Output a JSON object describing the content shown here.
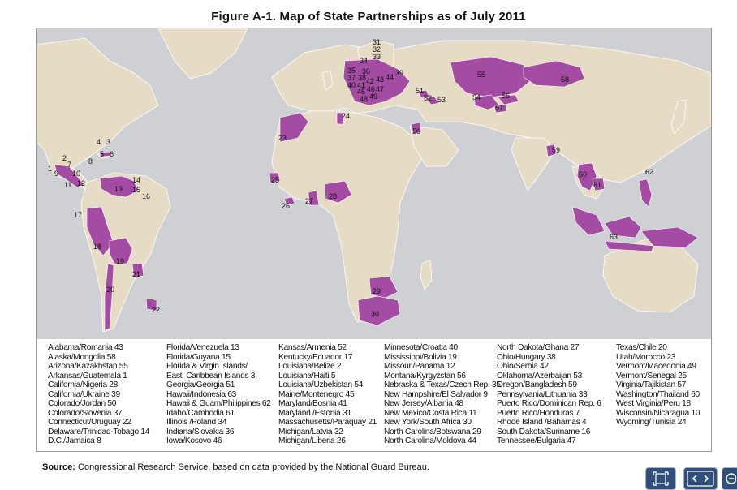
{
  "title": "Figure A-1. Map of State Partnerships as of July 2011",
  "source_label": "Source:",
  "source_text": " Congressional Research Service, based on data provided by the National Guard Bureau.",
  "colors": {
    "ocean": "#cfd0d3",
    "land": "#e6dcc6",
    "partner": "#a44ba4",
    "border": "#ffffff"
  },
  "map_numbers": [
    "1",
    "2",
    "3",
    "4",
    "5",
    "6",
    "7",
    "8",
    "9",
    "10",
    "11",
    "12",
    "13",
    "14",
    "15",
    "16",
    "17",
    "18",
    "19",
    "20",
    "21",
    "22",
    "23",
    "24",
    "25",
    "26",
    "27",
    "28",
    "29",
    "30",
    "31",
    "32",
    "33",
    "34",
    "35",
    "36",
    "37",
    "38",
    "39",
    "40",
    "41",
    "42",
    "43",
    "44",
    "45",
    "46",
    "47",
    "48",
    "49",
    "50",
    "51",
    "52",
    "53",
    "54",
    "55",
    "56",
    "57",
    "58",
    "59",
    "60",
    "61",
    "62",
    "63"
  ],
  "legend_columns": [
    [
      "Alabama/Romania 43",
      "Alaska/Mongolia 58",
      "Arizona/Kazakhstan 55",
      "Arkansas/Guatemala 1",
      "California/Nigeria 28",
      "California/Ukraine 39",
      "Colorado/Jordan 50",
      "Colorado/Slovenia 37",
      "Connecticut/Uruguay 22",
      "Delaware/Trinidad-Tobago 14",
      "D.C./Jamaica 8"
    ],
    [
      "Florida/Venezuela 13",
      "Florida/Guyana 15",
      "Florida & Virgin Islands/",
      "East. Caribbean Islands 3",
      "Georgia/Georgia 51",
      "Hawaii/Indonesia 63",
      "Hawaii & Guam/Philippines 62",
      "Idaho/Cambodia 61",
      "Illinois /Poland 34",
      "Indiana/Slovakia 36",
      "Iowa/Kosovo 46"
    ],
    [
      "Kansas/Armenia 52",
      "Kentucky/Ecuador 17",
      "Louisiana/Belize 2",
      "Louisiana/Haiti 5",
      "Louisiana/Uzbekistan 54",
      "Maine/Montenegro 45",
      "Maryland/Bosnia 41",
      "Maryland /Estonia 31",
      "Massachusetts/Paraquay 21",
      "Michigan/Latvia 32",
      "Michigan/Liberia 26"
    ],
    [
      "Minnesota/Croatia 40",
      "Mississippi/Bolivia 19",
      "Missouri/Panama 12",
      "Montana/Kyrgyzstan 56",
      "Nebraska & Texas/Czech Rep. 35",
      "New Hampshire/El Salvador 9",
      "New Jersey/Albania 48",
      "New Mexico/Costa Rica 11",
      "New York/South Africa 30",
      "North Carolina/Botswana 29",
      "North Carolina/Moldova 44"
    ],
    [
      "North Dakota/Ghana 27",
      "Ohio/Hungary 38",
      "Ohio/Serbia 42",
      "Oklahoma/Azerbaijan 53",
      "Oregon/Bangladesh 59",
      "Pennsylvania/Lithuania 33",
      "Puerto Rico/Dominican Rep. 6",
      "Puerto Rico/Honduras 7",
      "Rhode Island /Bahamas 4",
      "South Dakota/Suriname 16",
      "Tennessee/Bulgaria 47"
    ],
    [
      "Texas/Chile 20",
      "Utah/Morocco 23",
      "Vermont/Macedonia 49",
      "Vermont/Senegal 25",
      "Virginia/Tajikistan 57",
      "Washington/Thailand 60",
      "West Virginia/Peru 18",
      "Wisconsin/Nicaragua 10",
      "Wyoming/Tunisia 24"
    ]
  ],
  "controls": {
    "fit_icon": "expand-icon",
    "prev_next_icon": "prev-next-icon",
    "zoom_icon": "zoom-out-icon"
  }
}
